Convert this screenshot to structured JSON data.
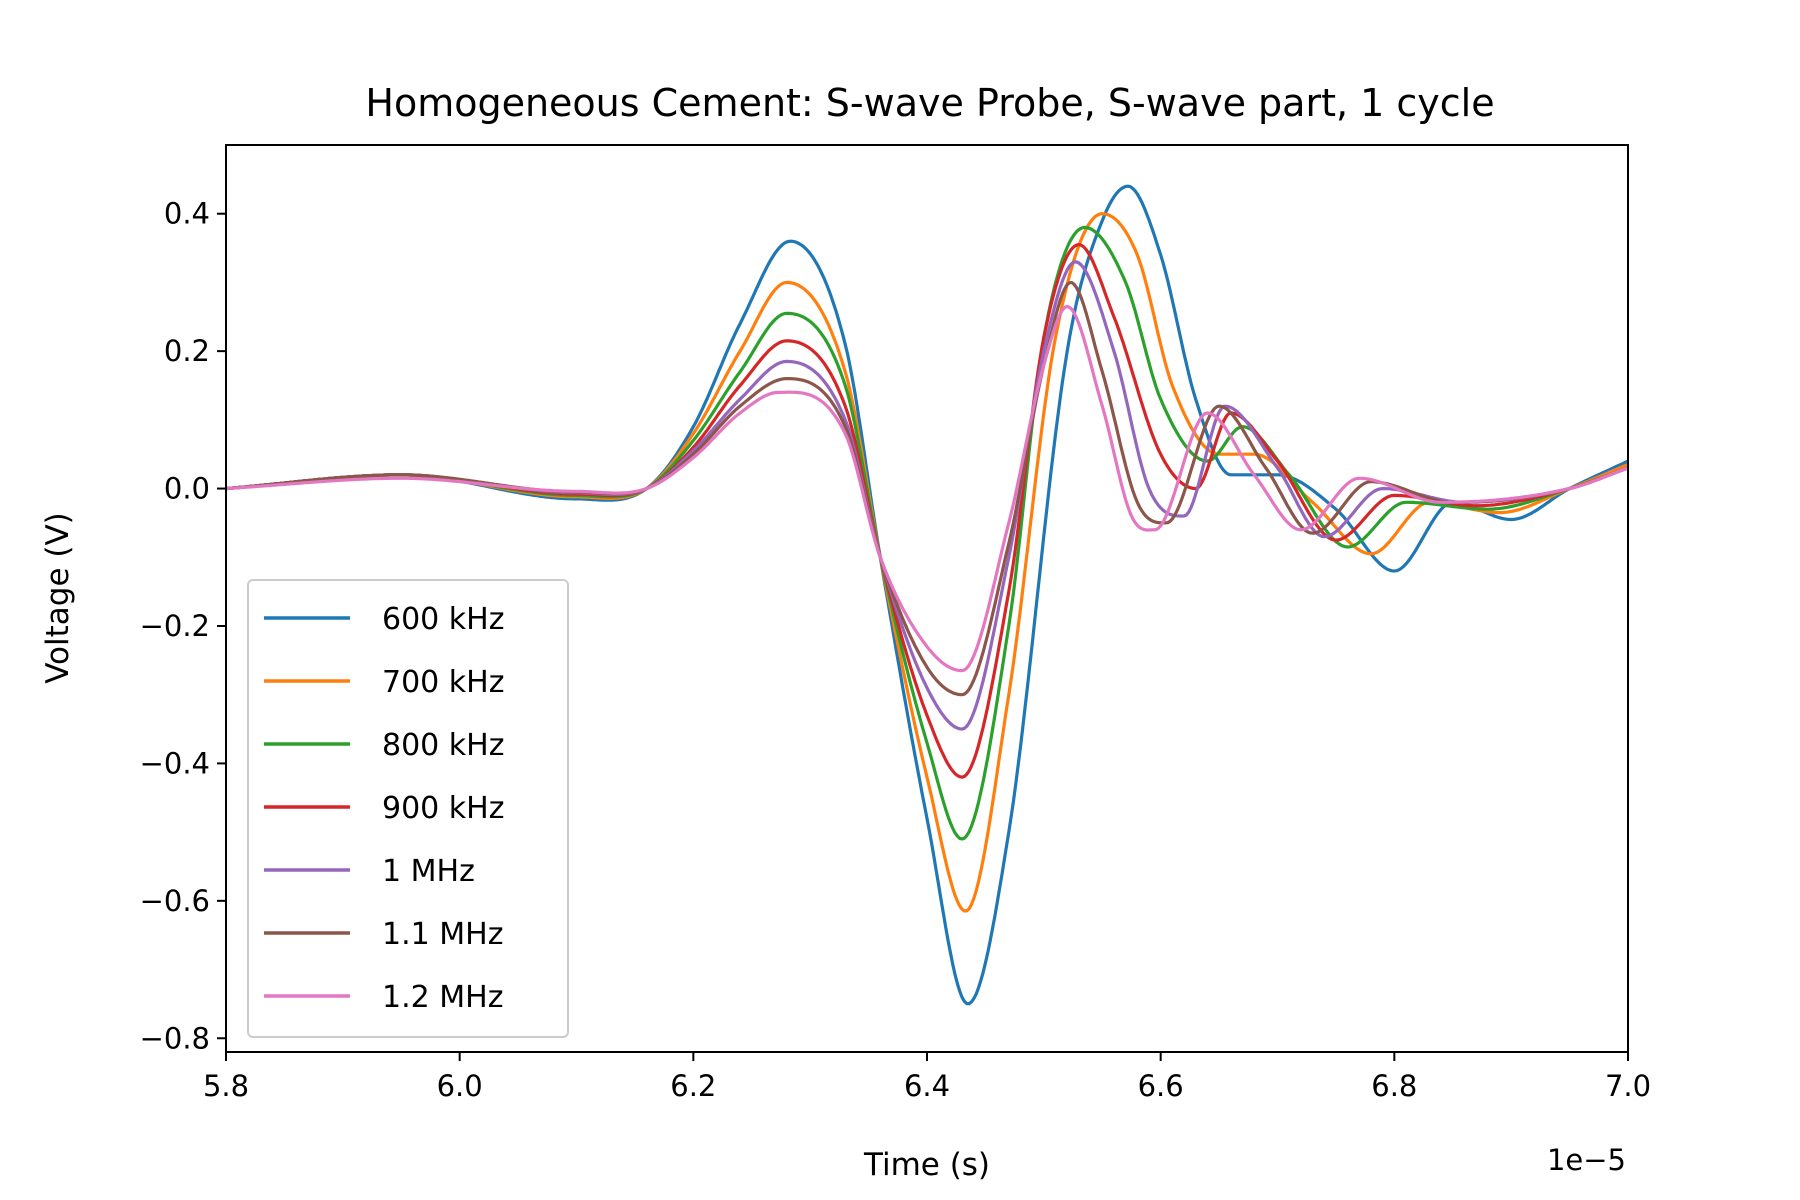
{
  "chart_data": {
    "type": "line",
    "title": "Homogeneous Cement: S-wave Probe, S-wave part, 1 cycle",
    "xlabel": "Time (s)",
    "ylabel": "Voltage (V)",
    "x_offset_label": "1e−5",
    "xlim": [
      5.8,
      7.0
    ],
    "ylim": [
      -0.82,
      0.5
    ],
    "x_ticks": [
      5.8,
      6.0,
      6.2,
      6.4,
      6.6,
      6.8,
      7.0
    ],
    "x_tick_labels": [
      "5.8",
      "6.0",
      "6.2",
      "6.4",
      "6.6",
      "6.8",
      "7.0"
    ],
    "y_ticks": [
      0.4,
      0.2,
      0.0,
      -0.2,
      -0.4,
      -0.6,
      -0.8
    ],
    "y_tick_labels": [
      "0.4",
      "0.2",
      "0.0",
      "−0.2",
      "−0.4",
      "−0.6",
      "−0.8"
    ],
    "grid": false,
    "legend_position": "lower-left",
    "series": [
      {
        "name": "600 kHz",
        "color": "#1f77b4",
        "x": [
          5.8,
          5.95,
          6.1,
          6.16,
          6.2,
          6.24,
          6.283,
          6.33,
          6.36,
          6.4,
          6.435,
          6.47,
          6.52,
          6.55,
          6.572,
          6.6,
          6.63,
          6.66,
          6.7,
          6.75,
          6.8,
          6.85,
          6.9,
          6.95,
          7.0
        ],
        "y": [
          0.0,
          0.02,
          -0.015,
          0.0,
          0.09,
          0.24,
          0.36,
          0.21,
          -0.1,
          -0.48,
          -0.75,
          -0.5,
          0.2,
          0.39,
          0.44,
          0.34,
          0.13,
          0.02,
          0.02,
          -0.03,
          -0.12,
          -0.02,
          -0.045,
          0.0,
          0.04
        ]
      },
      {
        "name": "700 kHz",
        "color": "#ff7f0e",
        "x": [
          5.8,
          5.95,
          6.1,
          6.16,
          6.2,
          6.24,
          6.28,
          6.33,
          6.36,
          6.4,
          6.433,
          6.47,
          6.51,
          6.55,
          6.58,
          6.61,
          6.65,
          6.68,
          6.73,
          6.78,
          6.83,
          6.89,
          6.95,
          7.0
        ],
        "y": [
          0.0,
          0.02,
          -0.012,
          0.0,
          0.08,
          0.2,
          0.3,
          0.17,
          -0.1,
          -0.42,
          -0.615,
          -0.3,
          0.22,
          0.4,
          0.34,
          0.15,
          0.05,
          0.05,
          -0.02,
          -0.095,
          -0.02,
          -0.035,
          0.0,
          0.035
        ]
      },
      {
        "name": "800 kHz",
        "color": "#2ca02c",
        "x": [
          5.8,
          5.95,
          6.1,
          6.16,
          6.2,
          6.24,
          6.28,
          6.33,
          6.36,
          6.4,
          6.43,
          6.47,
          6.5,
          6.535,
          6.57,
          6.6,
          6.64,
          6.67,
          6.71,
          6.76,
          6.81,
          6.88,
          6.95,
          7.0
        ],
        "y": [
          0.0,
          0.02,
          -0.01,
          0.0,
          0.07,
          0.17,
          0.255,
          0.15,
          -0.1,
          -0.37,
          -0.51,
          -0.2,
          0.22,
          0.38,
          0.3,
          0.13,
          0.04,
          0.09,
          0.02,
          -0.085,
          -0.02,
          -0.03,
          0.0,
          0.03
        ]
      },
      {
        "name": "900 kHz",
        "color": "#d62728",
        "x": [
          5.8,
          5.95,
          6.1,
          6.16,
          6.2,
          6.24,
          6.28,
          6.33,
          6.36,
          6.4,
          6.43,
          6.47,
          6.5,
          6.53,
          6.56,
          6.6,
          6.63,
          6.66,
          6.7,
          6.75,
          6.8,
          6.87,
          6.95,
          7.0
        ],
        "y": [
          0.0,
          0.02,
          -0.008,
          0.0,
          0.06,
          0.15,
          0.215,
          0.12,
          -0.1,
          -0.33,
          -0.42,
          -0.15,
          0.22,
          0.355,
          0.25,
          0.05,
          0.0,
          0.11,
          0.04,
          -0.075,
          -0.01,
          -0.025,
          0.0,
          0.03
        ]
      },
      {
        "name": "1 MHz",
        "color": "#9467bd",
        "x": [
          5.8,
          5.95,
          6.1,
          6.16,
          6.2,
          6.24,
          6.28,
          6.33,
          6.36,
          6.4,
          6.43,
          6.47,
          6.5,
          6.527,
          6.56,
          6.59,
          6.62,
          6.655,
          6.7,
          6.74,
          6.79,
          6.86,
          6.95,
          7.0
        ],
        "y": [
          0.0,
          0.02,
          -0.006,
          0.0,
          0.055,
          0.13,
          0.185,
          0.1,
          -0.1,
          -0.29,
          -0.35,
          -0.1,
          0.2,
          0.33,
          0.2,
          0.0,
          -0.04,
          0.12,
          0.03,
          -0.07,
          0.0,
          -0.02,
          0.0,
          0.03
        ]
      },
      {
        "name": "1.1 MHz",
        "color": "#8c564b",
        "x": [
          5.8,
          5.95,
          6.1,
          6.16,
          6.2,
          6.24,
          6.28,
          6.33,
          6.36,
          6.4,
          6.43,
          6.47,
          6.5,
          6.523,
          6.55,
          6.58,
          6.605,
          6.65,
          6.69,
          6.73,
          6.78,
          6.85,
          6.95,
          7.0
        ],
        "y": [
          0.0,
          0.02,
          -0.005,
          0.0,
          0.05,
          0.12,
          0.16,
          0.09,
          -0.1,
          -0.26,
          -0.3,
          -0.08,
          0.18,
          0.3,
          0.17,
          -0.02,
          -0.05,
          0.12,
          0.03,
          -0.065,
          0.01,
          -0.02,
          0.0,
          0.03
        ]
      },
      {
        "name": "1.2 MHz",
        "color": "#e377c2",
        "x": [
          5.8,
          5.95,
          6.1,
          6.16,
          6.2,
          6.24,
          6.273,
          6.33,
          6.36,
          6.4,
          6.43,
          6.47,
          6.5,
          6.52,
          6.55,
          6.575,
          6.595,
          6.64,
          6.68,
          6.72,
          6.77,
          6.84,
          6.95,
          7.0
        ],
        "y": [
          0.0,
          0.015,
          -0.004,
          0.0,
          0.045,
          0.11,
          0.14,
          0.08,
          -0.1,
          -0.23,
          -0.265,
          -0.05,
          0.18,
          0.265,
          0.12,
          -0.04,
          -0.06,
          0.11,
          0.02,
          -0.06,
          0.015,
          -0.02,
          0.0,
          0.03
        ]
      }
    ]
  }
}
